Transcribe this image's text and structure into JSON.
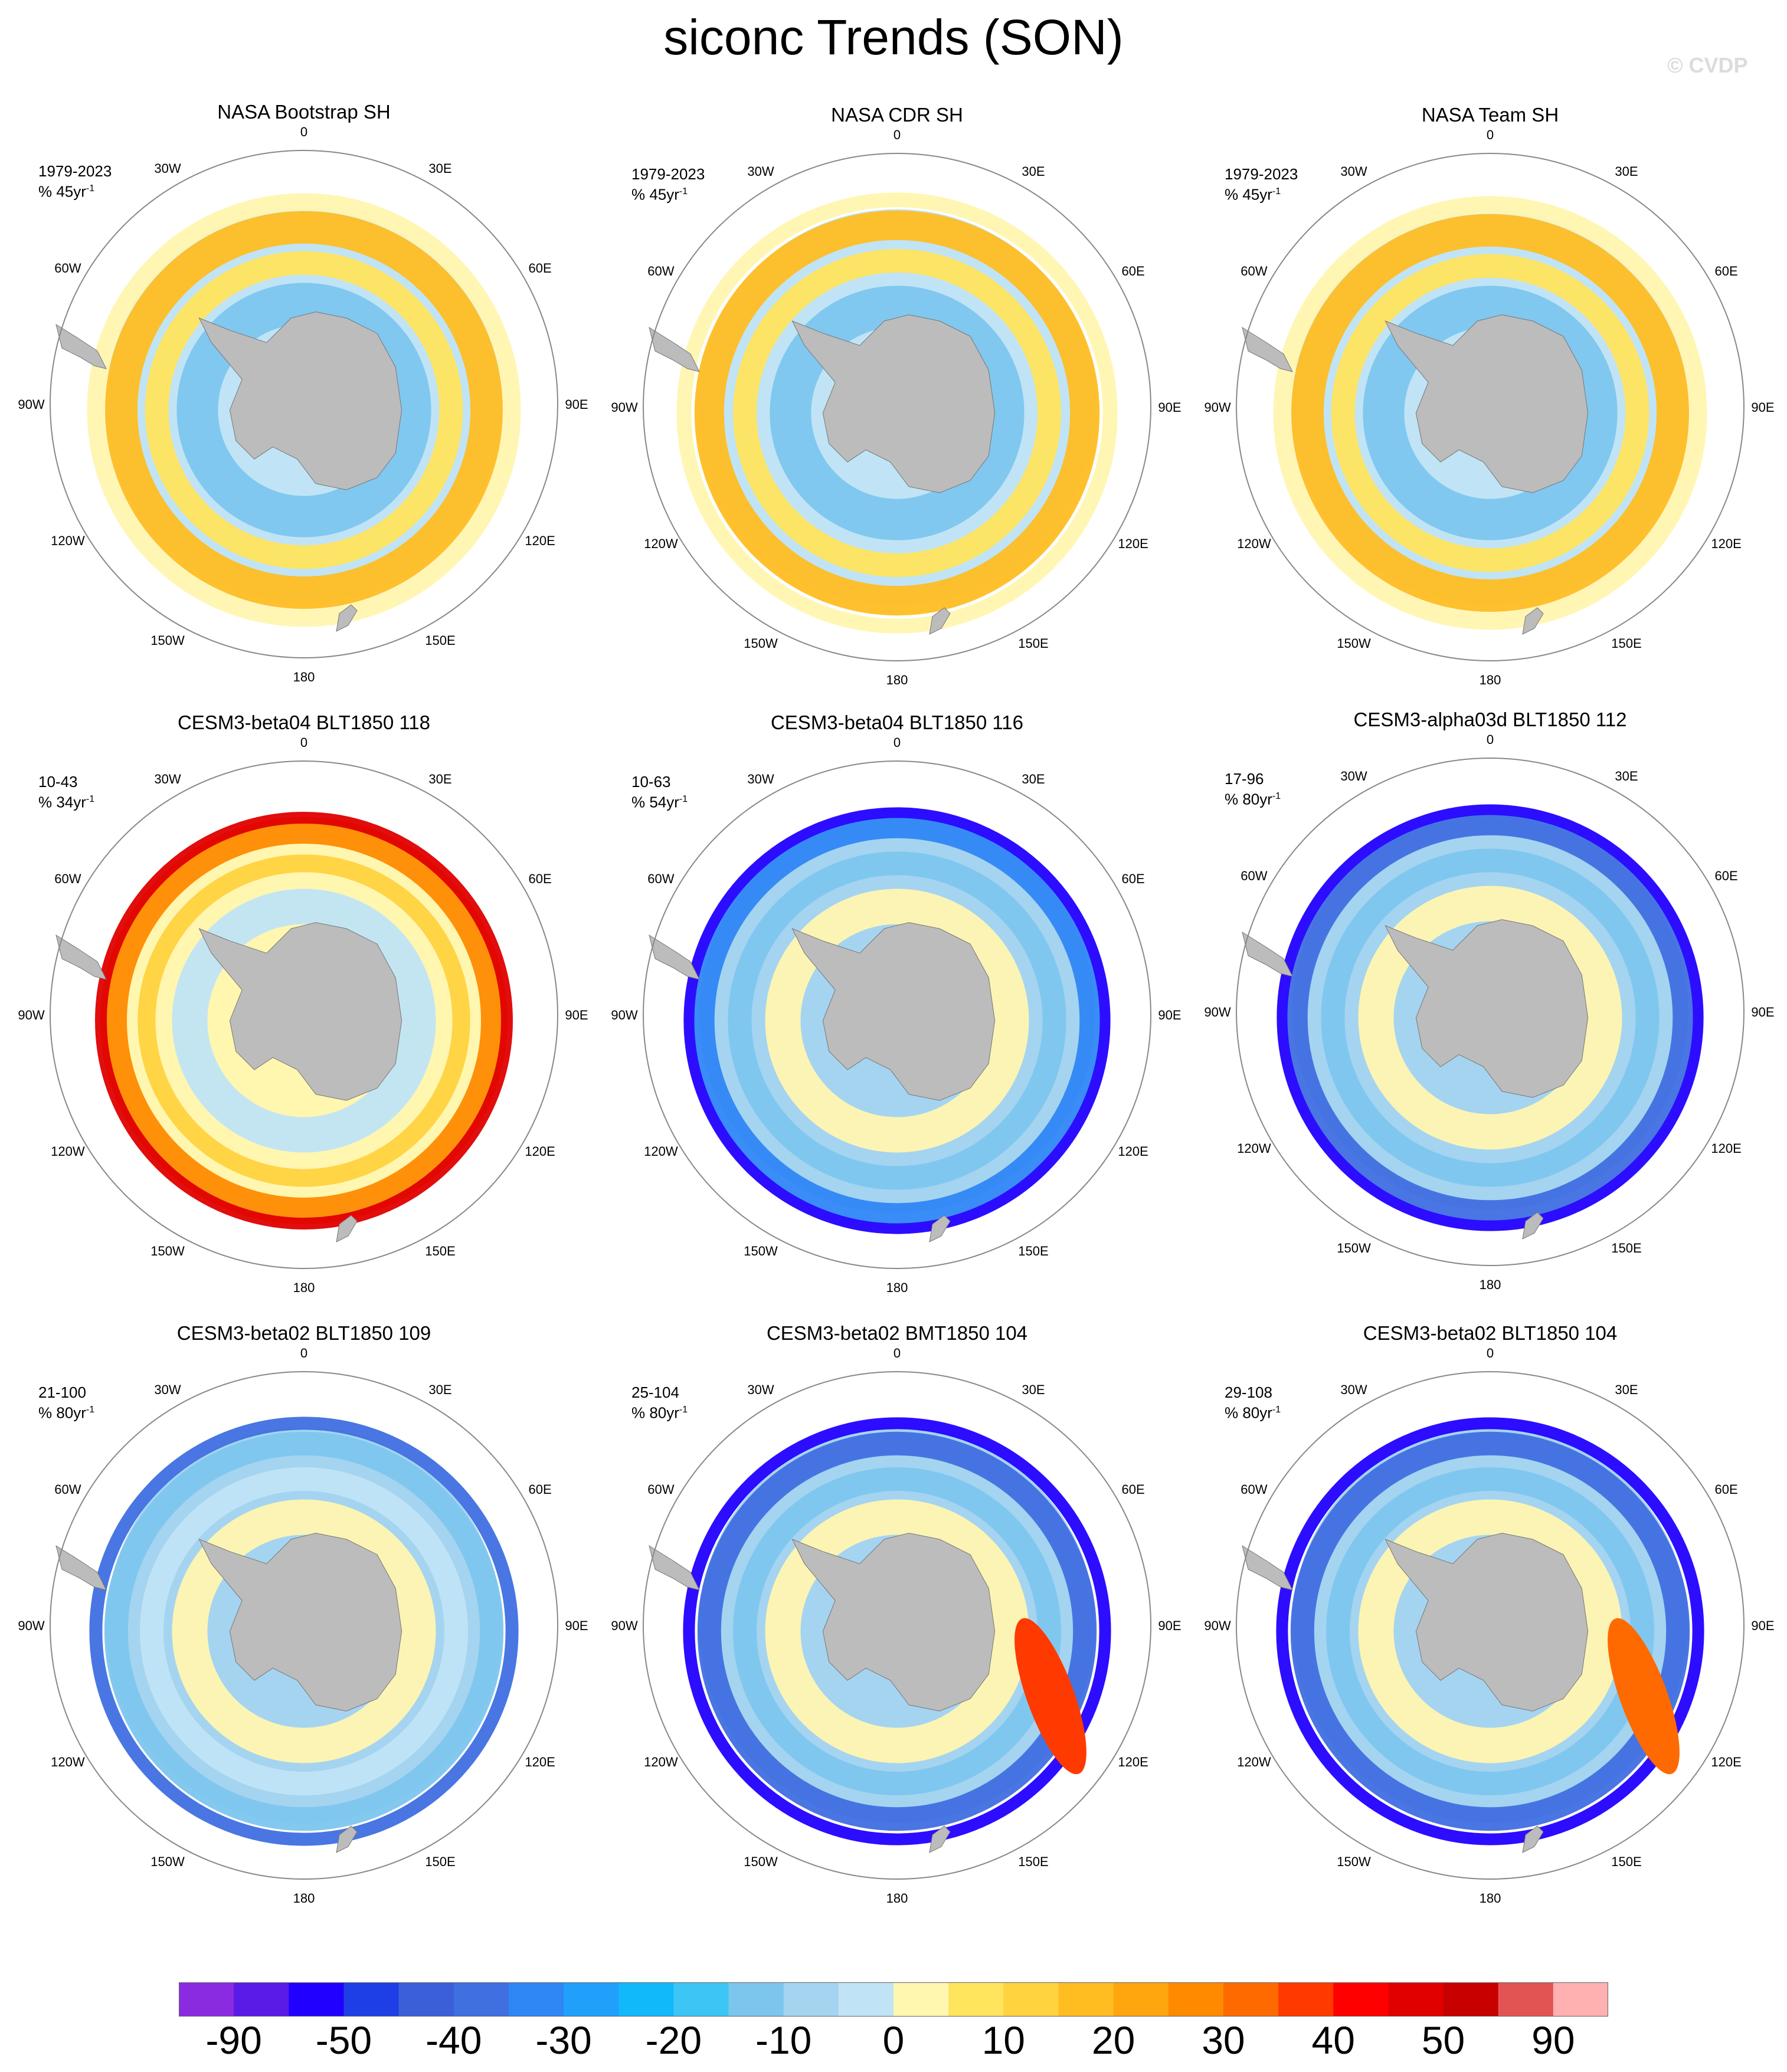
{
  "title": "siconc Trends (SON)",
  "watermark": "© CVDP",
  "longitude_labels": [
    "0",
    "30E",
    "60E",
    "90E",
    "120E",
    "150E",
    "180",
    "150W",
    "120W",
    "90W",
    "60W",
    "30W"
  ],
  "panels": [
    {
      "title": "NASA Bootstrap SH",
      "years": "1979-2023",
      "unit": "% 45yr",
      "unit_exp": "-1",
      "pattern": "obs1"
    },
    {
      "title": "NASA CDR SH",
      "years": "1979-2023",
      "unit": "% 45yr",
      "unit_exp": "-1",
      "pattern": "obs2"
    },
    {
      "title": "NASA Team SH",
      "years": "1979-2023",
      "unit": "% 45yr",
      "unit_exp": "-1",
      "pattern": "obs3"
    },
    {
      "title": "CESM3-beta04 BLT1850 118",
      "years": "10-43",
      "unit": "% 34yr",
      "unit_exp": "-1",
      "pattern": "warm"
    },
    {
      "title": "CESM3-beta04 BLT1850 116",
      "years": "10-63",
      "unit": "% 54yr",
      "unit_exp": "-1",
      "pattern": "cool"
    },
    {
      "title": "CESM3-alpha03d BLT1850 112",
      "years": "17-96",
      "unit": "% 80yr",
      "unit_exp": "-1",
      "pattern": "cool2"
    },
    {
      "title": "CESM3-beta02 BLT1850 109",
      "years": "21-100",
      "unit": "% 80yr",
      "unit_exp": "-1",
      "pattern": "mix"
    },
    {
      "title": "CESM3-beta02 BMT1850 104",
      "years": "25-104",
      "unit": "% 80yr",
      "unit_exp": "-1",
      "pattern": "mixwarm"
    },
    {
      "title": "CESM3-beta02 BLT1850 104",
      "years": "29-108",
      "unit": "% 80yr",
      "unit_exp": "-1",
      "pattern": "mixwarm2"
    }
  ],
  "colorbar": {
    "colors": [
      "#8a2be2",
      "#5a1ae8",
      "#2200ff",
      "#1f3fe6",
      "#3a5fd8",
      "#3f6fe0",
      "#2f86f5",
      "#21a0fb",
      "#11b8fa",
      "#3cc5f5",
      "#7cc6ee",
      "#a5d4f0",
      "#c0e4f5",
      "#fff6b0",
      "#ffe45e",
      "#ffd23f",
      "#ffbd22",
      "#ffa50e",
      "#ff8a00",
      "#ff6a00",
      "#ff3a00",
      "#ff0000",
      "#e00000",
      "#c80000",
      "#e25454",
      "#ffb0b0"
    ],
    "labels": [
      "-90",
      "-50",
      "-40",
      "-30",
      "-20",
      "-10",
      "0",
      "10",
      "20",
      "30",
      "40",
      "50",
      "90"
    ]
  },
  "colors": {
    "land": "#bcbcbc",
    "circle": "#888888"
  }
}
